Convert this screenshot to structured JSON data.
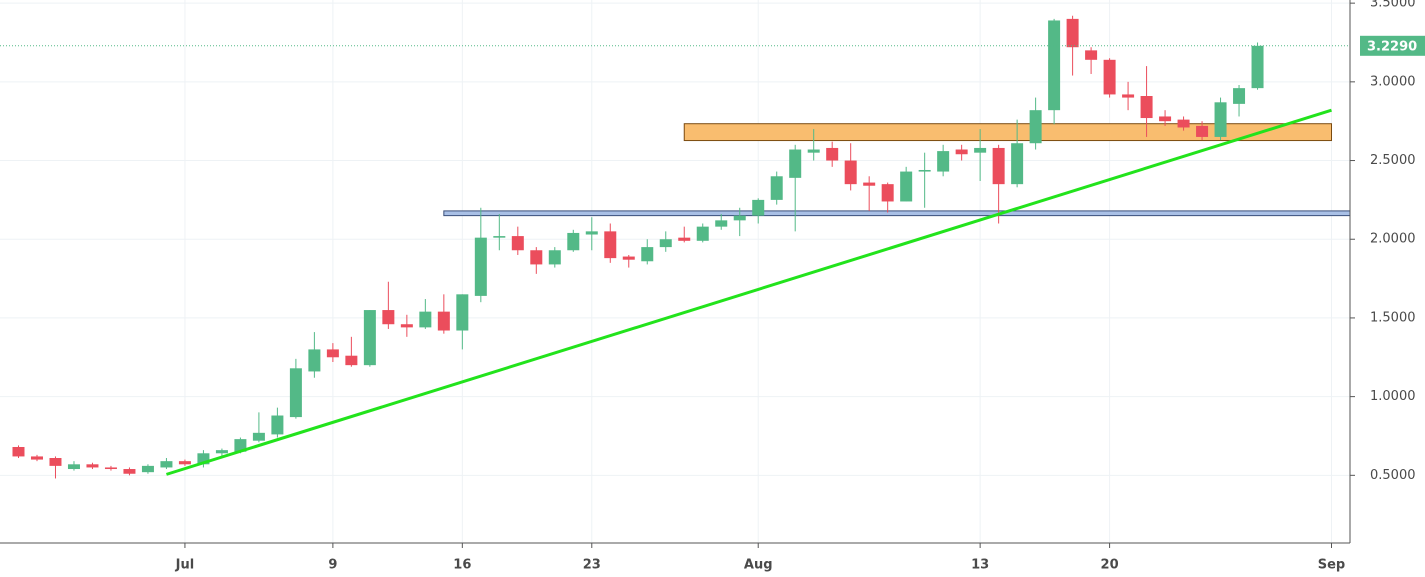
{
  "chart_data": {
    "type": "candlestick",
    "x": [
      "06-22",
      "06-23",
      "06-24",
      "06-25",
      "06-26",
      "06-27",
      "06-28",
      "06-29",
      "06-30",
      "07-01",
      "07-02",
      "07-03",
      "07-04",
      "07-05",
      "07-06",
      "07-07",
      "07-08",
      "07-09",
      "07-10",
      "07-11",
      "07-12",
      "07-13",
      "07-14",
      "07-15",
      "07-16",
      "07-17",
      "07-18",
      "07-19",
      "07-20",
      "07-21",
      "07-22",
      "07-23",
      "07-24",
      "07-25",
      "07-26",
      "07-27",
      "07-28",
      "07-29",
      "07-30",
      "07-31",
      "08-01",
      "08-02",
      "08-03",
      "08-04",
      "08-05",
      "08-06",
      "08-07",
      "08-08",
      "08-09",
      "08-10",
      "08-11",
      "08-12",
      "08-13",
      "08-14",
      "08-15",
      "08-16",
      "08-17",
      "08-18",
      "08-19",
      "08-20",
      "08-21",
      "08-22",
      "08-23",
      "08-24",
      "08-25",
      "08-26",
      "08-27",
      "08-28"
    ],
    "open": [
      0.68,
      0.62,
      0.61,
      0.54,
      0.57,
      0.55,
      0.54,
      0.52,
      0.55,
      0.59,
      0.57,
      0.64,
      0.65,
      0.72,
      0.76,
      0.87,
      1.16,
      1.3,
      1.26,
      1.2,
      1.55,
      1.46,
      1.44,
      1.54,
      1.42,
      1.64,
      2.01,
      2.02,
      1.93,
      1.84,
      1.93,
      2.03,
      2.05,
      1.89,
      1.86,
      1.95,
      2.01,
      1.99,
      2.08,
      2.12,
      2.15,
      2.25,
      2.39,
      2.55,
      2.58,
      2.5,
      2.36,
      2.35,
      2.24,
      2.43,
      2.43,
      2.57,
      2.55,
      2.58,
      2.35,
      2.61,
      2.82,
      3.4,
      3.2,
      3.14,
      2.92,
      2.91,
      2.78,
      2.76,
      2.72,
      2.65,
      2.86,
      2.96
    ],
    "high": [
      0.69,
      0.63,
      0.62,
      0.59,
      0.58,
      0.56,
      0.55,
      0.57,
      0.61,
      0.6,
      0.66,
      0.67,
      0.74,
      0.9,
      0.93,
      1.24,
      1.41,
      1.34,
      1.38,
      1.55,
      1.73,
      1.52,
      1.62,
      1.65,
      1.65,
      2.2,
      2.16,
      2.08,
      1.95,
      1.95,
      2.06,
      2.14,
      2.1,
      1.9,
      2.0,
      2.05,
      2.08,
      2.1,
      2.16,
      2.2,
      2.26,
      2.43,
      2.6,
      2.7,
      2.62,
      2.61,
      2.4,
      2.36,
      2.46,
      2.55,
      2.6,
      2.6,
      2.7,
      2.6,
      2.76,
      2.9,
      3.4,
      3.42,
      3.22,
      3.15,
      3.0,
      3.1,
      2.82,
      2.78,
      2.75,
      2.9,
      2.98,
      3.25
    ],
    "low": [
      0.61,
      0.59,
      0.48,
      0.53,
      0.54,
      0.53,
      0.5,
      0.51,
      0.54,
      0.56,
      0.55,
      0.62,
      0.64,
      0.71,
      0.74,
      0.86,
      1.12,
      1.22,
      1.19,
      1.19,
      1.43,
      1.38,
      1.43,
      1.4,
      1.3,
      1.6,
      1.93,
      1.9,
      1.78,
      1.82,
      1.92,
      1.93,
      1.85,
      1.82,
      1.84,
      1.92,
      1.98,
      1.98,
      2.06,
      2.02,
      2.1,
      2.22,
      2.05,
      2.5,
      2.46,
      2.31,
      2.18,
      2.17,
      2.24,
      2.2,
      2.4,
      2.5,
      2.37,
      2.1,
      2.33,
      2.57,
      2.73,
      3.04,
      3.05,
      2.9,
      2.82,
      2.65,
      2.72,
      2.69,
      2.63,
      2.63,
      2.78,
      2.95
    ],
    "close": [
      0.62,
      0.6,
      0.56,
      0.57,
      0.55,
      0.54,
      0.51,
      0.56,
      0.59,
      0.57,
      0.64,
      0.66,
      0.73,
      0.77,
      0.88,
      1.18,
      1.3,
      1.25,
      1.2,
      1.55,
      1.46,
      1.44,
      1.54,
      1.42,
      1.65,
      2.01,
      2.02,
      1.93,
      1.84,
      1.93,
      2.04,
      2.05,
      1.88,
      1.87,
      1.95,
      2.0,
      1.99,
      2.08,
      2.12,
      2.15,
      2.25,
      2.4,
      2.57,
      2.57,
      2.5,
      2.35,
      2.34,
      2.24,
      2.43,
      2.44,
      2.56,
      2.54,
      2.58,
      2.35,
      2.61,
      2.82,
      3.39,
      3.22,
      3.14,
      2.92,
      2.9,
      2.77,
      2.75,
      2.71,
      2.65,
      2.87,
      2.96,
      3.229
    ],
    "up_color": "#53b987",
    "down_color": "#eb4d5c",
    "xlim": [
      "06-21",
      "09-02"
    ],
    "xticks": [
      {
        "value": "07-01",
        "label": "Jul"
      },
      {
        "value": "07-09",
        "label": "9"
      },
      {
        "value": "07-16",
        "label": "16"
      },
      {
        "value": "07-23",
        "label": "23"
      },
      {
        "value": "08-01",
        "label": "Aug"
      },
      {
        "value": "08-13",
        "label": "13"
      },
      {
        "value": "08-20",
        "label": "20"
      },
      {
        "value": "09-01",
        "label": "Sep"
      }
    ],
    "ylim": [
      0.07,
      3.52
    ],
    "yticks": [
      {
        "value": 0.5,
        "label": "0.5000"
      },
      {
        "value": 1,
        "label": "1.0000"
      },
      {
        "value": 1.5,
        "label": "1.5000"
      },
      {
        "value": 2,
        "label": "2.0000"
      },
      {
        "value": 2.5,
        "label": "2.5000"
      },
      {
        "value": 3,
        "label": "3.0000"
      },
      {
        "value": 3.5,
        "label": "3.5000"
      }
    ],
    "grid": true,
    "last_price": {
      "value": 3.229,
      "label": "3.2290"
    },
    "zones": [
      {
        "from": "07-28",
        "to": "09-01",
        "low": 2.627,
        "high": 2.734,
        "color": "#f9bd6f",
        "edge": "#7a4a10"
      },
      {
        "from": "07-15",
        "to": "09-02",
        "low": 2.15,
        "high": 2.18,
        "color": "#a9c0e6",
        "edge": "#3b4f7a"
      }
    ],
    "trendline": {
      "from": "06-30",
      "to": "09-01",
      "start": 0.506,
      "end": 2.82,
      "color": "#22e31c"
    }
  }
}
